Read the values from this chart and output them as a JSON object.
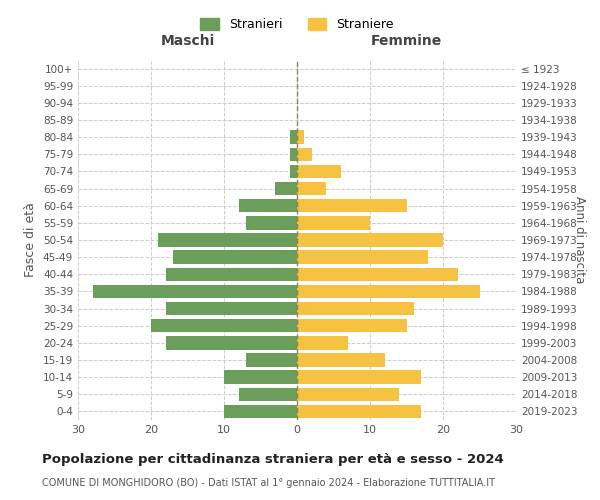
{
  "age_groups": [
    "0-4",
    "5-9",
    "10-14",
    "15-19",
    "20-24",
    "25-29",
    "30-34",
    "35-39",
    "40-44",
    "45-49",
    "50-54",
    "55-59",
    "60-64",
    "65-69",
    "70-74",
    "75-79",
    "80-84",
    "85-89",
    "90-94",
    "95-99",
    "100+"
  ],
  "birth_years": [
    "2019-2023",
    "2014-2018",
    "2009-2013",
    "2004-2008",
    "1999-2003",
    "1994-1998",
    "1989-1993",
    "1984-1988",
    "1979-1983",
    "1974-1978",
    "1969-1973",
    "1964-1968",
    "1959-1963",
    "1954-1958",
    "1949-1953",
    "1944-1948",
    "1939-1943",
    "1934-1938",
    "1929-1933",
    "1924-1928",
    "≤ 1923"
  ],
  "maschi": [
    10,
    8,
    10,
    7,
    18,
    20,
    18,
    28,
    18,
    17,
    19,
    7,
    8,
    3,
    1,
    1,
    1,
    0,
    0,
    0,
    0
  ],
  "femmine": [
    17,
    14,
    17,
    12,
    7,
    15,
    16,
    25,
    22,
    18,
    20,
    10,
    15,
    4,
    6,
    2,
    1,
    0,
    0,
    0,
    0
  ],
  "color_maschi": "#6a9e5a",
  "color_femmine": "#f5c242",
  "title": "Popolazione per cittadinanza straniera per età e sesso - 2024",
  "subtitle": "COMUNE DI MONGHIDORO (BO) - Dati ISTAT al 1° gennaio 2024 - Elaborazione TUTTITALIA.IT",
  "label_maschi": "Stranieri",
  "label_femmine": "Straniere",
  "xlabel_left": "Maschi",
  "xlabel_right": "Femmine",
  "ylabel_left": "Fasce di età",
  "ylabel_right": "Anni di nascita",
  "xlim": 30,
  "background_color": "#ffffff",
  "grid_color": "#cccccc"
}
